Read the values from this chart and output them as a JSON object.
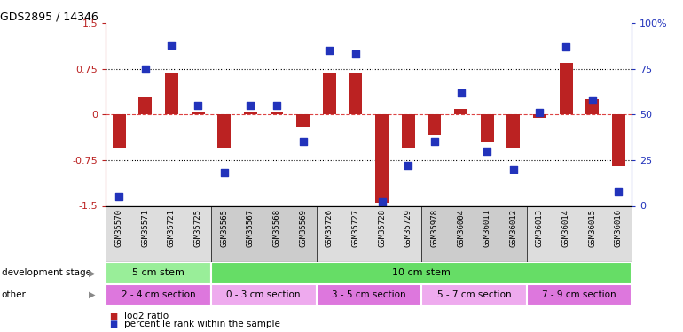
{
  "title": "GDS2895 / 14346",
  "samples": [
    "GSM35570",
    "GSM35571",
    "GSM35721",
    "GSM35725",
    "GSM35565",
    "GSM35567",
    "GSM35568",
    "GSM35569",
    "GSM35726",
    "GSM35727",
    "GSM35728",
    "GSM35729",
    "GSM35978",
    "GSM36004",
    "GSM36011",
    "GSM36012",
    "GSM36013",
    "GSM36014",
    "GSM36015",
    "GSM36016"
  ],
  "log2_ratio": [
    -0.55,
    0.3,
    0.68,
    0.05,
    -0.55,
    0.05,
    0.05,
    -0.2,
    0.68,
    0.68,
    -1.45,
    -0.55,
    -0.35,
    0.1,
    -0.45,
    -0.55,
    -0.05,
    0.85,
    0.25,
    -0.85
  ],
  "percentile": [
    5,
    75,
    88,
    55,
    18,
    55,
    55,
    35,
    85,
    83,
    2,
    22,
    35,
    62,
    30,
    20,
    51,
    87,
    58,
    8
  ],
  "ylim": [
    -1.5,
    1.5
  ],
  "y2lim": [
    0,
    100
  ],
  "yticks": [
    -1.5,
    -0.75,
    0,
    0.75,
    1.5
  ],
  "y2ticks": [
    0,
    25,
    50,
    75,
    100
  ],
  "hlines": [
    0.75,
    -0.75
  ],
  "bar_color": "#bb2222",
  "dot_color": "#2233bb",
  "zero_line_color": "#dd4444",
  "bg_color": "#ffffff",
  "dev_stage_groups": [
    {
      "label": "5 cm stem",
      "start": 0,
      "end": 4,
      "color": "#99ee99"
    },
    {
      "label": "10 cm stem",
      "start": 4,
      "end": 20,
      "color": "#66dd66"
    }
  ],
  "other_groups": [
    {
      "label": "2 - 4 cm section",
      "start": 0,
      "end": 4,
      "color": "#dd77dd"
    },
    {
      "label": "0 - 3 cm section",
      "start": 4,
      "end": 8,
      "color": "#eeaaee"
    },
    {
      "label": "3 - 5 cm section",
      "start": 8,
      "end": 12,
      "color": "#dd77dd"
    },
    {
      "label": "5 - 7 cm section",
      "start": 12,
      "end": 16,
      "color": "#eeaaee"
    },
    {
      "label": "7 - 9 cm section",
      "start": 16,
      "end": 20,
      "color": "#dd77dd"
    }
  ],
  "dev_label": "development stage",
  "other_label": "other",
  "legend_log2": "log2 ratio",
  "legend_pct": "percentile rank within the sample",
  "xticklabel_fontsize": 6.5,
  "bar_width": 0.5
}
